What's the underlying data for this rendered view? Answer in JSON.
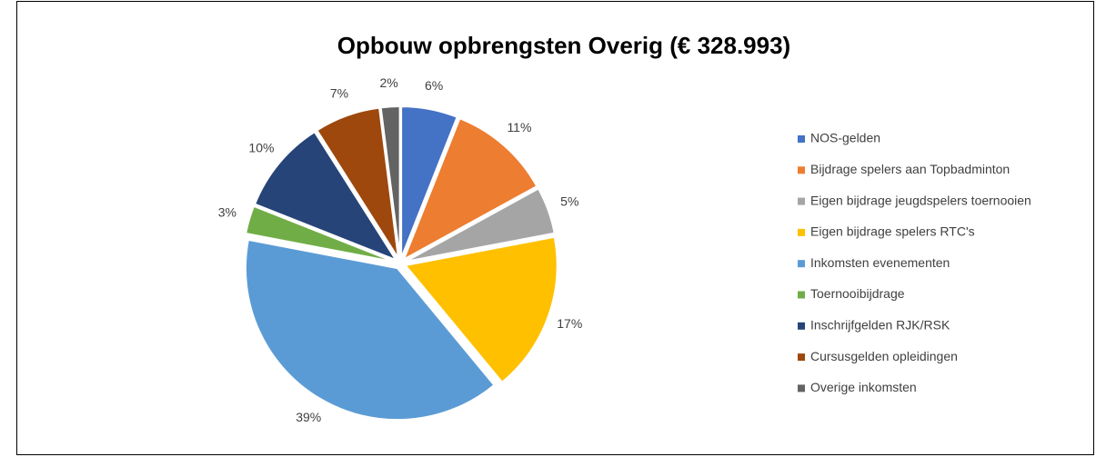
{
  "chart_data": {
    "type": "pie",
    "title": "Opbouw opbrengsten Overig (€ 328.993)",
    "categories": [
      "NOS-gelden",
      "Bijdrage spelers aan Topbadminton",
      "Eigen bijdrage jeugdspelers toernooien",
      "Eigen bijdrage spelers RTC's",
      "Inkomsten evenementen",
      "Toernooibijdrage",
      "Inschrijfgelden RJK/RSK",
      "Cursusgelden opleidingen",
      "Overige inkomsten"
    ],
    "values": [
      6,
      11,
      5,
      17,
      39,
      3,
      10,
      7,
      2
    ],
    "value_labels": [
      "6%",
      "11%",
      "5%",
      "17%",
      "39%",
      "3%",
      "10%",
      "7%",
      "2%"
    ],
    "colors": [
      "#4472c4",
      "#ed7d31",
      "#a5a5a5",
      "#ffc000",
      "#5b9bd5",
      "#70ad47",
      "#264478",
      "#9e480e",
      "#636363"
    ],
    "legend": "right"
  }
}
